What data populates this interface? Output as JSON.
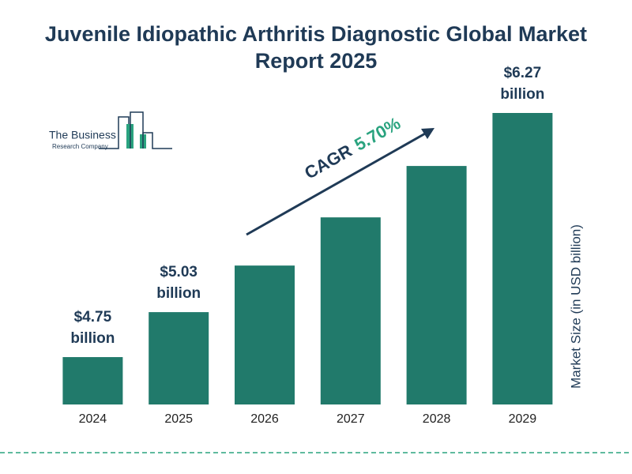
{
  "chart_data": {
    "type": "bar",
    "title": "Juvenile Idiopathic Arthritis Diagnostic Global Market Report 2025",
    "categories": [
      "2024",
      "2025",
      "2026",
      "2027",
      "2028",
      "2029"
    ],
    "values": [
      4.75,
      5.03,
      5.32,
      5.62,
      5.94,
      6.27
    ],
    "value_labels": [
      "$4.75 billion",
      "$5.03 billion",
      null,
      null,
      null,
      "$6.27 billion"
    ],
    "color": "#217a6b",
    "ylim": [
      4.455,
      6.27
    ],
    "y_axis_label": "Market Size (in USD billion)",
    "cagr_label": "CAGR",
    "cagr_value": "5.70%",
    "logo_line1": "The Business",
    "logo_line2": "Research Company"
  }
}
